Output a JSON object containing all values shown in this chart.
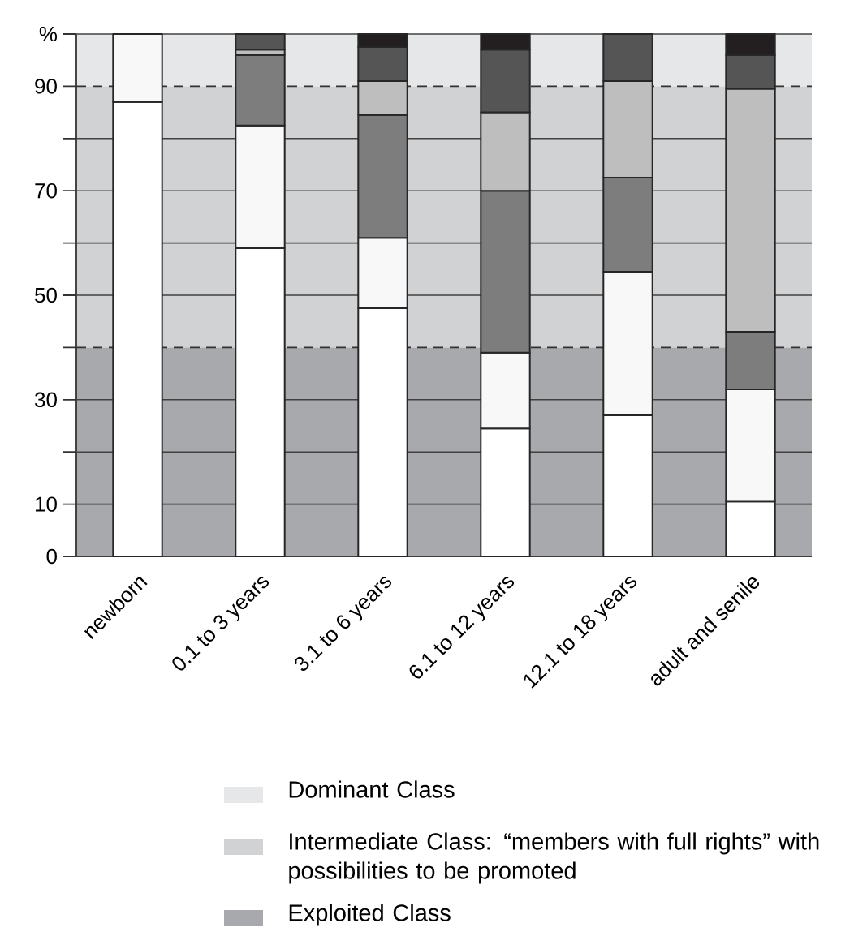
{
  "chart_data": {
    "type": "bar",
    "stacked": true,
    "categories": [
      "newborn",
      "0.1 to 3 years",
      "3.1 to 6 years",
      "6.1 to 12 years",
      "12.1 to 18 years",
      "adult and senile"
    ],
    "series": [
      {
        "color": "#ffffff",
        "values": [
          87,
          59,
          47.5,
          24.5,
          27,
          10.5
        ]
      },
      {
        "color": "#f8f8f8",
        "values": [
          13,
          23.5,
          13.5,
          14.5,
          27.5,
          21.5
        ]
      },
      {
        "color": "#7d7d7d",
        "values": [
          null,
          13.5,
          23.5,
          31,
          18,
          11
        ]
      },
      {
        "color": "#bebebe",
        "values": [
          null,
          1,
          6.5,
          15,
          18.5,
          46.5
        ]
      },
      {
        "color": "#555555",
        "values": [
          null,
          3,
          6.5,
          12,
          9,
          6.5
        ]
      },
      {
        "color": "#231f20",
        "values": [
          null,
          null,
          2.5,
          3,
          null,
          4
        ]
      }
    ],
    "ylim": [
      0,
      100
    ],
    "yticks": [
      0,
      10,
      {
        "value": 20,
        "label": null
      },
      30,
      {
        "value": 40,
        "label": null
      },
      50,
      {
        "value": 60,
        "label": null
      },
      70,
      {
        "value": 80,
        "label": null
      },
      90,
      {
        "value": 100,
        "label": "%"
      }
    ],
    "grid": "y",
    "bands": [
      {
        "axis": "y",
        "from": 90,
        "to": 100,
        "label": "Dominant Class",
        "color": "#e6e7e8"
      },
      {
        "axis": "y",
        "from": 40,
        "to": 90,
        "label": "Intermediate Class: “members with full rights” with possibilities to be promoted",
        "color": "#d1d2d4"
      },
      {
        "axis": "y",
        "from": 0,
        "to": 40,
        "label": "Exploited Class",
        "color": "#a7a9ac"
      }
    ],
    "legend": "bottom"
  }
}
